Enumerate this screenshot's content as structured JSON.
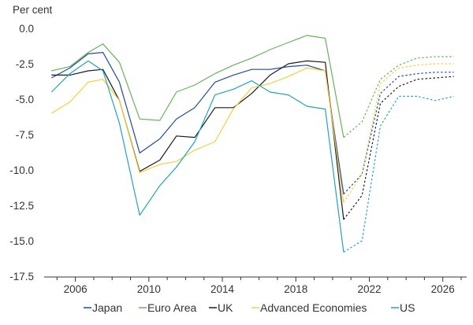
{
  "chart_data": {
    "type": "line",
    "unit_label": "Per cent",
    "ylim": [
      -17.5,
      0.0
    ],
    "xlim": [
      2004.3,
      2027.3
    ],
    "y_ticks": [
      "0.0",
      "-2.5",
      "-5.0",
      "-7.5",
      "-10.0",
      "-12.5",
      "-15.0",
      "-17.5"
    ],
    "x_ticks": [
      "2006",
      "2010",
      "2014",
      "2018",
      "2022",
      "2026"
    ],
    "grid": false,
    "legend_position": "bottom",
    "projection_note": "dotted lines from 2021 onwards",
    "series": [
      {
        "name": "Japan",
        "color": "#1f4e9c",
        "x": [
          2004.7,
          2005.7,
          2006.7,
          2007.5,
          2008.4,
          2009.5,
          2010.6,
          2011.5,
          2012.5,
          2013.6,
          2014.6,
          2015.6,
          2016.6,
          2017.6,
          2018.6,
          2019.6,
          2020.6
        ],
        "y": [
          -3.5,
          -2.8,
          -1.8,
          -1.7,
          -3.8,
          -8.8,
          -7.8,
          -6.4,
          -5.6,
          -3.8,
          -3.3,
          -2.9,
          -2.9,
          -2.7,
          -2.6,
          -3.0,
          -11.7
        ],
        "projection": {
          "x": [
            2020.6,
            2021.6,
            2022.6,
            2023.6,
            2024.6,
            2025.6,
            2026.6
          ],
          "y": [
            -11.7,
            -10.3,
            -4.6,
            -3.4,
            -3.2,
            -3.1,
            -3.1
          ]
        }
      },
      {
        "name": "Euro Area",
        "color": "#66b45a",
        "x": [
          2004.7,
          2005.7,
          2006.7,
          2007.5,
          2008.4,
          2009.5,
          2010.6,
          2011.5,
          2012.5,
          2013.6,
          2014.6,
          2015.6,
          2016.6,
          2017.6,
          2018.6,
          2019.6,
          2020.6
        ],
        "y": [
          -3.0,
          -2.7,
          -1.7,
          -1.1,
          -2.4,
          -6.4,
          -6.5,
          -4.5,
          -4.0,
          -3.2,
          -2.6,
          -2.1,
          -1.5,
          -1.0,
          -0.5,
          -0.7,
          -7.7
        ],
        "projection": {
          "x": [
            2020.6,
            2021.6,
            2022.6,
            2023.6,
            2024.6,
            2025.6,
            2026.6
          ],
          "y": [
            -7.7,
            -6.6,
            -3.6,
            -2.6,
            -2.1,
            -2.0,
            -2.0
          ]
        }
      },
      {
        "name": "UK",
        "color": "#1a1a2e",
        "x": [
          2004.7,
          2005.7,
          2006.7,
          2007.5,
          2008.4,
          2009.5,
          2010.6,
          2011.5,
          2012.5,
          2013.6,
          2014.6,
          2015.6,
          2016.6,
          2017.6,
          2018.6,
          2019.6,
          2020.6
        ],
        "y": [
          -3.3,
          -3.3,
          -3.0,
          -2.9,
          -5.1,
          -10.1,
          -9.3,
          -7.6,
          -7.7,
          -5.6,
          -5.6,
          -4.6,
          -3.3,
          -2.5,
          -2.3,
          -2.4,
          -13.5
        ],
        "projection": {
          "x": [
            2020.6,
            2021.6,
            2022.6,
            2023.6,
            2024.6,
            2025.6,
            2026.6
          ],
          "y": [
            -13.5,
            -11.8,
            -5.3,
            -4.1,
            -3.6,
            -3.5,
            -3.4
          ]
        }
      },
      {
        "name": "Advanced Economies",
        "color": "#f5cf3a",
        "x": [
          2004.7,
          2005.7,
          2006.7,
          2007.5,
          2008.4,
          2009.5,
          2010.6,
          2011.5,
          2012.5,
          2013.6,
          2014.6,
          2015.6,
          2016.6,
          2017.6,
          2018.6,
          2019.6,
          2020.6
        ],
        "y": [
          -6.0,
          -5.2,
          -3.8,
          -3.6,
          -5.1,
          -10.2,
          -9.6,
          -9.4,
          -8.6,
          -8.0,
          -5.7,
          -4.2,
          -3.9,
          -3.4,
          -2.8,
          -3.0,
          -12.3
        ],
        "projection": {
          "x": [
            2020.6,
            2021.6,
            2022.6,
            2023.6,
            2024.6,
            2025.6,
            2026.6
          ],
          "y": [
            -12.3,
            -10.3,
            -3.9,
            -2.8,
            -2.6,
            -2.5,
            -2.5
          ]
        }
      },
      {
        "name": "US",
        "color": "#22a5b8",
        "x": [
          2004.7,
          2005.7,
          2006.7,
          2007.5,
          2008.4,
          2009.5,
          2010.6,
          2011.5,
          2012.5,
          2013.6,
          2014.6,
          2015.6,
          2016.6,
          2017.6,
          2018.6,
          2019.6,
          2020.6
        ],
        "y": [
          -4.5,
          -3.2,
          -2.3,
          -3.0,
          -6.7,
          -13.2,
          -11.1,
          -9.8,
          -8.0,
          -4.7,
          -4.3,
          -3.7,
          -4.5,
          -4.7,
          -5.5,
          -5.7,
          -15.8
        ],
        "projection": {
          "x": [
            2020.6,
            2021.6,
            2022.6,
            2023.6,
            2024.6,
            2025.6,
            2026.6
          ],
          "y": [
            -15.8,
            -15.0,
            -6.9,
            -4.8,
            -4.8,
            -5.1,
            -4.8
          ]
        }
      }
    ]
  }
}
